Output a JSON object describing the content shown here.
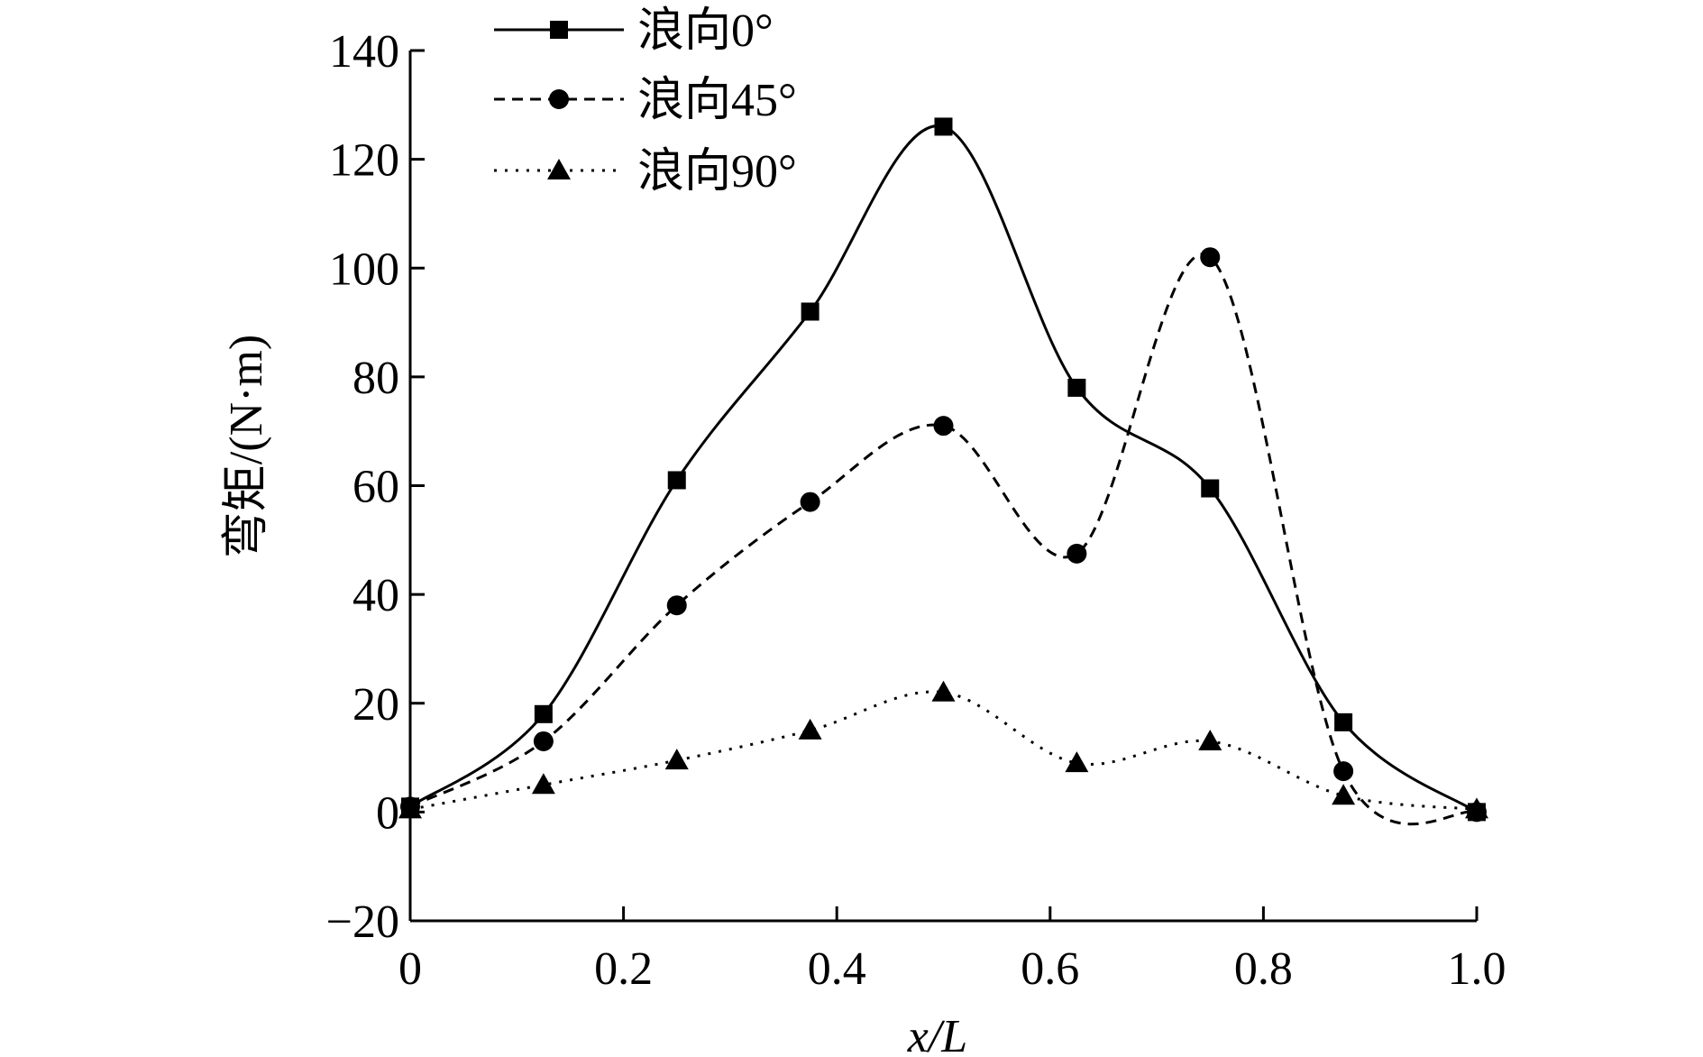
{
  "chart_data": {
    "type": "line",
    "xlabel": "x/L",
    "ylabel": "弯矩/(N·m)",
    "xlim": [
      0,
      1.0
    ],
    "ylim": [
      -20,
      140
    ],
    "x_ticks": [
      "0",
      "0.2",
      "0.4",
      "0.6",
      "0.8",
      "1.0"
    ],
    "x_tick_values": [
      0,
      0.2,
      0.4,
      0.6,
      0.8,
      1.0
    ],
    "y_ticks": [
      "-20",
      "0",
      "20",
      "40",
      "60",
      "80",
      "100",
      "120",
      "140"
    ],
    "y_tick_values": [
      -20,
      0,
      20,
      40,
      60,
      80,
      100,
      120,
      140
    ],
    "legend_position": "top-left",
    "grid": false,
    "x": [
      0.0,
      0.125,
      0.25,
      0.375,
      0.5,
      0.625,
      0.75,
      0.875,
      1.0
    ],
    "series": [
      {
        "name": "浪向0°",
        "marker": "square",
        "line_style": "solid",
        "color": "#000000",
        "values": [
          1,
          18,
          61,
          92,
          126,
          78,
          59.5,
          16.5,
          0
        ]
      },
      {
        "name": "浪向45°",
        "marker": "circle",
        "line_style": "dashed",
        "color": "#000000",
        "values": [
          1,
          13,
          38,
          57,
          71,
          47.5,
          102,
          7.5,
          0
        ]
      },
      {
        "name": "浪向90°",
        "marker": "triangle",
        "line_style": "dotted",
        "color": "#000000",
        "values": [
          0.5,
          5,
          9.5,
          15,
          22,
          9,
          13,
          3,
          0.5
        ]
      }
    ]
  }
}
